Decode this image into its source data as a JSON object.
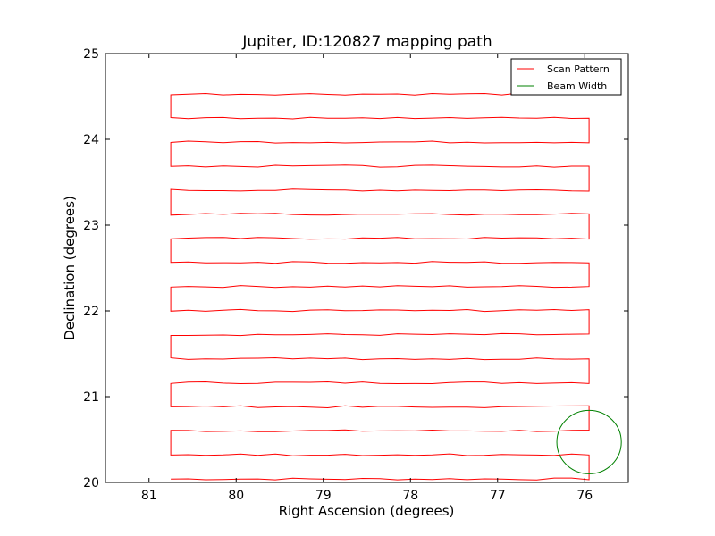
{
  "chart_data": {
    "type": "line",
    "title": "Jupiter, ID:120827 mapping path",
    "xlabel": "Right Ascension (degrees)",
    "ylabel": "Declination (degrees)",
    "xlim": [
      81.5,
      75.5
    ],
    "ylim": [
      20,
      25
    ],
    "x_inverted": true,
    "xticks": [
      81,
      80,
      79,
      78,
      77,
      76
    ],
    "yticks": [
      20,
      21,
      22,
      23,
      24,
      25
    ],
    "grid": false,
    "legend": {
      "placement": "top-right",
      "entries": [
        {
          "label": "Scan Pattern",
          "color": "#ff0000"
        },
        {
          "label": "Beam Width",
          "color": "#008000"
        }
      ]
    },
    "series": [
      {
        "name": "Scan Pattern",
        "color": "#ff0000",
        "kind": "serpentine-raster",
        "ra_start": 80.75,
        "ra_end": 75.95,
        "dec_start": 20.04,
        "dec_end": 24.53,
        "rows": 17,
        "wobble_deg": 0.012
      },
      {
        "name": "Beam Width",
        "color": "#008000",
        "kind": "circle",
        "center_ra": 75.95,
        "center_dec": 20.47,
        "radius_deg": 0.37
      }
    ]
  }
}
